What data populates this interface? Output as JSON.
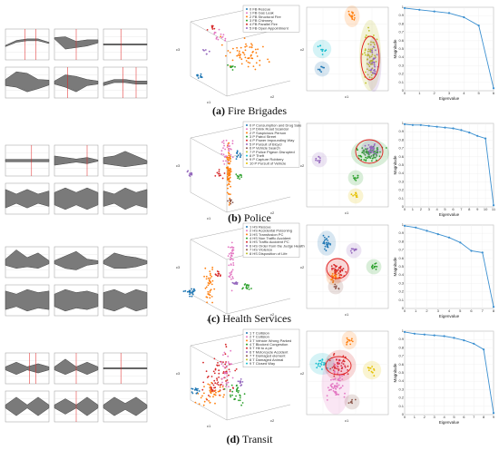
{
  "figure": {
    "panels": [
      {
        "id": "a",
        "letter": "(a)",
        "caption": "Fire Brigades",
        "legend": [
          "0 FB Rescue",
          "1 FB Gas Leak",
          "2 FB Structural Fire",
          "3 FB Chimney",
          "4 FB Parallel Fire",
          "5 FB Open Appointment"
        ],
        "tsne_axis": {
          "x": "c1",
          "y": "c2"
        },
        "eig_xlabel": "Eigenvalue",
        "eig_ylabel": "Magnitude",
        "eig_xticks": [
          "0",
          "1",
          "2",
          "3",
          "4",
          "5",
          "6"
        ],
        "eig_yticks": [
          "0",
          "0.1",
          "0.2",
          "0.3",
          "0.4",
          "0.5",
          "0.6",
          "0.7",
          "0.8",
          "0.9",
          "1"
        ],
        "chart_data": {
          "type": "line",
          "x": [
            0,
            1,
            2,
            3,
            4,
            5,
            6
          ],
          "values": [
            0.99,
            0.97,
            0.95,
            0.93,
            0.88,
            0.78,
            0.03
          ],
          "ylim": [
            0,
            1
          ]
        }
      },
      {
        "id": "b",
        "letter": "(b)",
        "caption": "Police",
        "legend": [
          "0 P Consumption and Drug Sale",
          "1 P Drink Road Scandal",
          "2 P Suspicious Person",
          "3 P Patrol Street",
          "4 P Power Impounding Way",
          "5 P Pursuit of Bicycl",
          "6 P Vehicle Search",
          "7 P Police Pigeon Disrupted",
          "8 P Theft",
          "9 P Capture Robbery",
          "10 P Pursuit of Vehicle"
        ],
        "tsne_axis": {
          "x": "c1",
          "y": "c2"
        },
        "eig_xlabel": "Eigenvalue",
        "eig_ylabel": "Magnitude",
        "eig_xticks": [
          "0",
          "1",
          "2",
          "3",
          "4",
          "5",
          "6",
          "7",
          "8",
          "9",
          "10",
          "11"
        ],
        "eig_yticks": [
          "0",
          "0.1",
          "0.2",
          "0.3",
          "0.4",
          "0.5",
          "0.6",
          "0.7",
          "0.8",
          "0.9",
          "1"
        ],
        "chart_data": {
          "type": "line",
          "x": [
            0,
            1,
            2,
            3,
            4,
            5,
            6,
            7,
            8,
            9,
            10,
            11
          ],
          "values": [
            0.99,
            0.98,
            0.98,
            0.97,
            0.96,
            0.95,
            0.94,
            0.92,
            0.89,
            0.85,
            0.82,
            0.02
          ],
          "ylim": [
            0,
            1
          ]
        }
      },
      {
        "id": "c",
        "letter": "(c)",
        "caption": "Health Services",
        "legend": [
          "1 HS Rescue",
          "2 HS Accidental Poisoning",
          "3 HS Transfusion PC",
          "4 HS Non Traffic Accident",
          "5 HS Traffic Accident PC",
          "6 HS Order from the Judge Health",
          "7 HS Violence",
          "8 HS Disposition of Life"
        ],
        "tsne_axis": {
          "x": "c1",
          "y": "c2"
        },
        "eig_xlabel": "Eigenvalue",
        "eig_ylabel": "Magnitude",
        "eig_xticks": [
          "0",
          "1",
          "2",
          "3",
          "4",
          "5",
          "6",
          "7",
          "8"
        ],
        "eig_yticks": [
          "0",
          "0.1",
          "0.2",
          "0.3",
          "0.4",
          "0.5",
          "0.6",
          "0.7",
          "0.8",
          "0.9",
          "1"
        ],
        "chart_data": {
          "type": "line",
          "x": [
            0,
            1,
            2,
            3,
            4,
            5,
            6,
            7,
            8
          ],
          "values": [
            0.99,
            0.97,
            0.93,
            0.89,
            0.85,
            0.79,
            0.69,
            0.67,
            0.02
          ],
          "ylim": [
            0,
            1
          ]
        }
      },
      {
        "id": "d",
        "letter": "(d)",
        "caption": "Transit",
        "legend": [
          "1 T Collision",
          "2 T Collision",
          "3 T Vehicle Wrong Parked",
          "4 T Blocked Congestion",
          "5 T Hit to a pe",
          "6 T Motorcycle Accident",
          "7 T Damaged element",
          "8 T Damaged Animal",
          "9 T Closed Way"
        ],
        "tsne_axis": {
          "x": "c1",
          "y": "c2"
        },
        "eig_xlabel": "Eigenvalue",
        "eig_ylabel": "Magnitude",
        "eig_xticks": [
          "0",
          "1",
          "2",
          "3",
          "4",
          "5",
          "6",
          "7",
          "8",
          "9"
        ],
        "eig_yticks": [
          "0",
          "0.1",
          "0.2",
          "0.3",
          "0.4",
          "0.5",
          "0.6",
          "0.7",
          "0.8",
          "0.9",
          "1"
        ],
        "chart_data": {
          "type": "line",
          "x": [
            0,
            1,
            2,
            3,
            4,
            5,
            6,
            7,
            8,
            9
          ],
          "values": [
            0.99,
            0.97,
            0.96,
            0.95,
            0.94,
            0.92,
            0.89,
            0.85,
            0.78,
            0.02
          ],
          "ylim": [
            0,
            1
          ]
        }
      }
    ],
    "colors": [
      "#1f77b4",
      "#e377c2",
      "#ff7f0e",
      "#2ca02c",
      "#d62728",
      "#9467bd",
      "#8c564b",
      "#bcbd22",
      "#17becf",
      "#7f7f7f",
      "#e5c100"
    ]
  }
}
